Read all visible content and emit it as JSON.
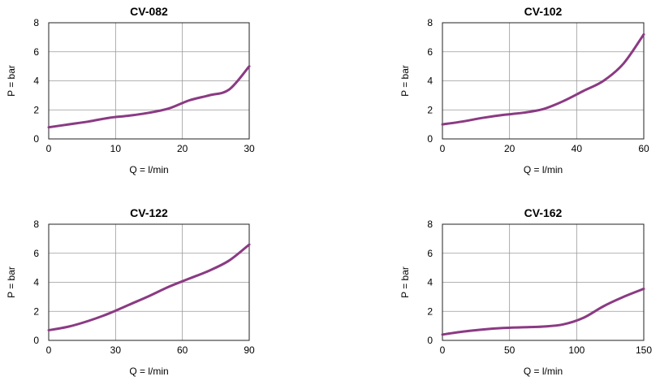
{
  "colors": {
    "curve": "#8B3A83",
    "grid": "#999999",
    "axis": "#222222"
  },
  "chart_data": [
    {
      "type": "line",
      "title": "CV-082",
      "xlabel": "Q = l/min",
      "ylabel": "P = bar",
      "xlim": [
        0,
        30
      ],
      "ylim": [
        0,
        8
      ],
      "xticks": [
        0,
        10,
        20,
        30
      ],
      "yticks": [
        0,
        2,
        4,
        6,
        8
      ],
      "grid": true,
      "series": [
        {
          "x": [
            0,
            3,
            6,
            9,
            12,
            15,
            18,
            21,
            24,
            27,
            30
          ],
          "y": [
            0.8,
            1.0,
            1.2,
            1.45,
            1.6,
            1.8,
            2.1,
            2.65,
            3.0,
            3.4,
            5.0
          ]
        }
      ]
    },
    {
      "type": "line",
      "title": "CV-102",
      "xlabel": "Q = l/min",
      "ylabel": "P = bar",
      "xlim": [
        0,
        60
      ],
      "ylim": [
        0,
        8
      ],
      "xticks": [
        0,
        20,
        40,
        60
      ],
      "yticks": [
        0,
        2,
        4,
        6,
        8
      ],
      "grid": true,
      "series": [
        {
          "x": [
            0,
            6,
            12,
            18,
            24,
            30,
            36,
            42,
            48,
            54,
            60
          ],
          "y": [
            1.0,
            1.2,
            1.45,
            1.65,
            1.8,
            2.05,
            2.6,
            3.3,
            4.0,
            5.2,
            7.2
          ]
        }
      ]
    },
    {
      "type": "line",
      "title": "CV-122",
      "xlabel": "Q = l/min",
      "ylabel": "P = bar",
      "xlim": [
        0,
        90
      ],
      "ylim": [
        0,
        8
      ],
      "xticks": [
        0,
        30,
        60,
        90
      ],
      "yticks": [
        0,
        2,
        4,
        6,
        8
      ],
      "grid": true,
      "series": [
        {
          "x": [
            0,
            9,
            18,
            27,
            36,
            45,
            54,
            63,
            72,
            81,
            90
          ],
          "y": [
            0.7,
            0.95,
            1.35,
            1.85,
            2.45,
            3.05,
            3.7,
            4.25,
            4.8,
            5.5,
            6.6
          ]
        }
      ]
    },
    {
      "type": "line",
      "title": "CV-162",
      "xlabel": "Q = l/min",
      "ylabel": "P = bar",
      "xlim": [
        0,
        150
      ],
      "ylim": [
        0,
        8
      ],
      "xticks": [
        0,
        50,
        100,
        150
      ],
      "yticks": [
        0,
        2,
        4,
        6,
        8
      ],
      "grid": true,
      "series": [
        {
          "x": [
            0,
            15,
            30,
            45,
            60,
            75,
            90,
            105,
            120,
            135,
            150
          ],
          "y": [
            0.4,
            0.6,
            0.75,
            0.85,
            0.9,
            0.95,
            1.1,
            1.55,
            2.35,
            3.0,
            3.55
          ]
        }
      ]
    }
  ]
}
